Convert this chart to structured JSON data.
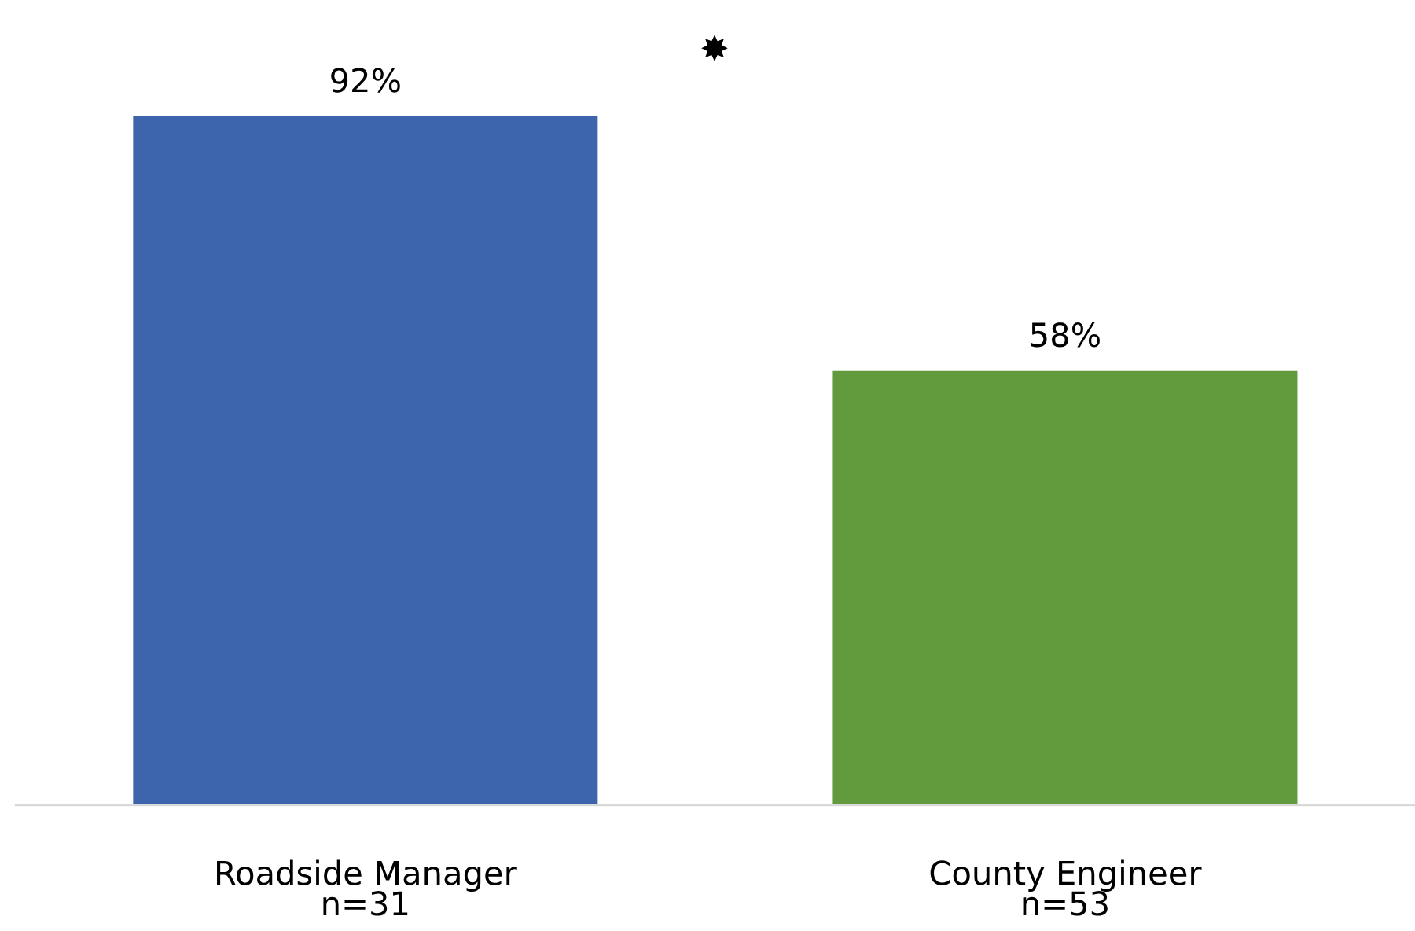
{
  "chart_data": {
    "type": "bar",
    "categories": [
      "Roadside Manager\nn=31",
      "County Engineer\nn=53"
    ],
    "values": [
      92,
      58
    ],
    "colors": [
      "#3c65ad",
      "#629a3e"
    ],
    "value_labels": [
      "92%",
      "58%"
    ],
    "tick_labels": "x",
    "grid": false,
    "legend": false,
    "annotations": [
      "✸"
    ]
  }
}
